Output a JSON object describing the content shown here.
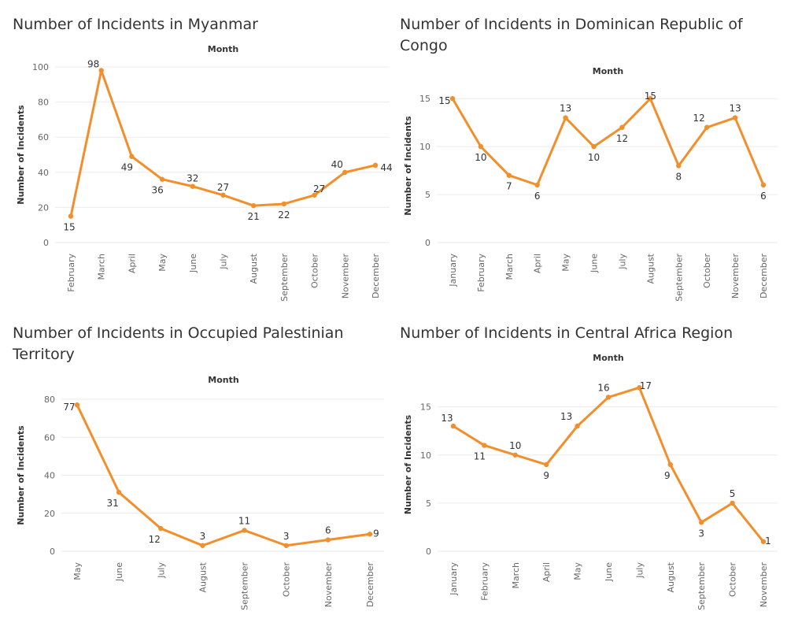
{
  "style": {
    "line_color": "#f28e2b",
    "text_color": "#333333",
    "tick_color": "#666666",
    "grid_color": "#ebebeb"
  },
  "chart_data": [
    {
      "type": "line",
      "title": "Number of Incidents in Myanmar",
      "xlabel": "Month",
      "ylabel": "Number of Incidents",
      "ylim": [
        0,
        100
      ],
      "yticks": [
        0,
        20,
        40,
        60,
        80,
        100
      ],
      "x": [
        "February",
        "March",
        "April",
        "May",
        "June",
        "July",
        "August",
        "September",
        "October",
        "November",
        "December"
      ],
      "y": [
        15,
        98,
        49,
        36,
        32,
        27,
        21,
        22,
        27,
        40,
        44
      ]
    },
    {
      "type": "line",
      "title": "Number of Incidents in Dominican Republic of Congo",
      "xlabel": "Month",
      "ylabel": "Number of Incidents",
      "ylim": [
        0,
        16
      ],
      "yticks": [
        0,
        5,
        10,
        15
      ],
      "x": [
        "January",
        "February",
        "March",
        "April",
        "May",
        "June",
        "July",
        "August",
        "September",
        "October",
        "November",
        "December"
      ],
      "y": [
        15,
        10,
        7,
        6,
        13,
        10,
        12,
        15,
        8,
        12,
        13,
        6
      ]
    },
    {
      "type": "line",
      "title": "Number of Incidents in Occupied Palestinian Territory",
      "xlabel": "Month",
      "ylabel": "Number of Incidents",
      "ylim": [
        0,
        80
      ],
      "yticks": [
        0,
        20,
        40,
        60,
        80
      ],
      "x": [
        "May",
        "June",
        "July",
        "August",
        "September",
        "October",
        "November",
        "December"
      ],
      "y": [
        77,
        31,
        12,
        3,
        11,
        3,
        6,
        9
      ]
    },
    {
      "type": "line",
      "title": "Number of Incidents in Central Africa Region",
      "xlabel": "Month",
      "ylabel": "Number of Incidents",
      "ylim": [
        0,
        18
      ],
      "yticks": [
        0,
        5,
        10,
        15
      ],
      "x": [
        "January",
        "February",
        "March",
        "April",
        "May",
        "June",
        "July",
        "August",
        "September",
        "October",
        "November"
      ],
      "y": [
        13,
        11,
        10,
        9,
        13,
        16,
        17,
        9,
        3,
        5,
        1
      ]
    }
  ]
}
